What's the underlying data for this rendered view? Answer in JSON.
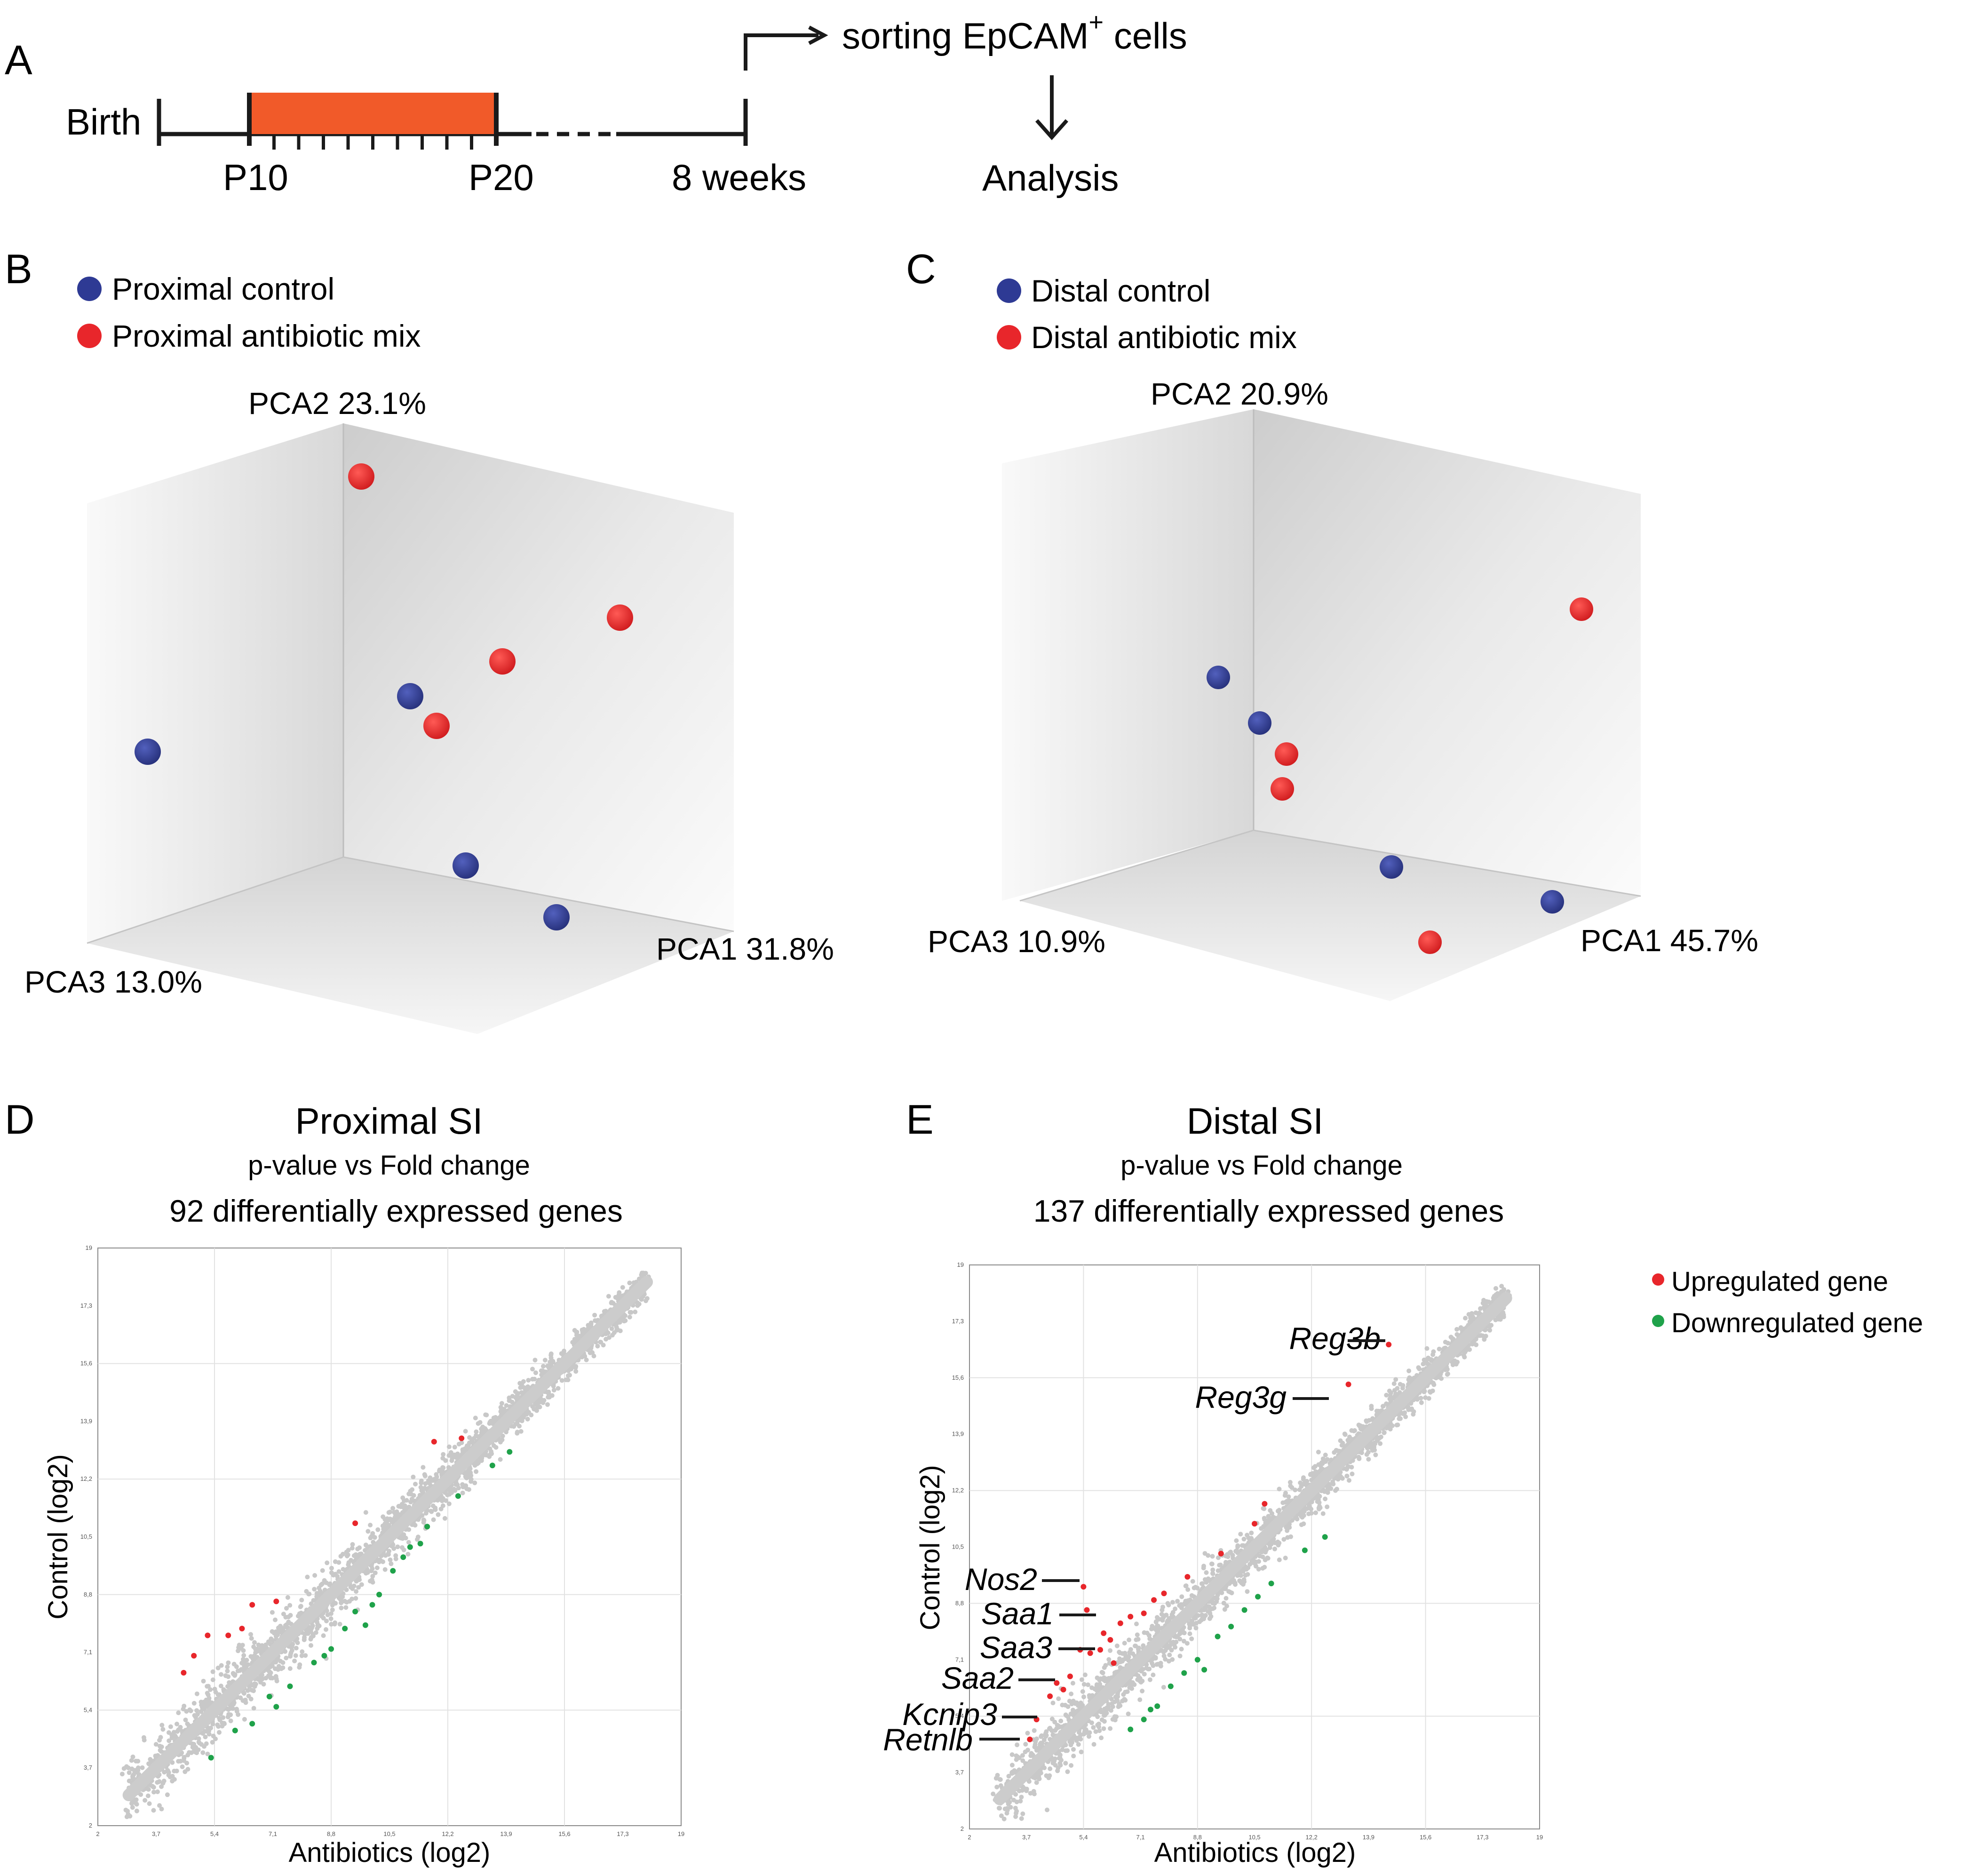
{
  "panels": {
    "A": {
      "letter": "A",
      "birth": "Birth",
      "p10": "P10",
      "p20": "P20",
      "weeks": "8 weeks",
      "sorting_pre": "sorting EpCAM",
      "sorting_sup": "+",
      "sorting_post": " cells",
      "analysis": "Analysis",
      "treatment_color": "#f15a29"
    },
    "B": {
      "letter": "B",
      "legend": [
        {
          "label": "Proximal control",
          "color": "#2e3a94"
        },
        {
          "label": "Proximal antibiotic mix",
          "color": "#e8262b"
        }
      ],
      "axes": {
        "pca1": "PCA1 31.8%",
        "pca2": "PCA2 23.1%",
        "pca3": "PCA3 13.0%"
      }
    },
    "C": {
      "letter": "C",
      "legend": [
        {
          "label": "Distal control",
          "color": "#2e3a94"
        },
        {
          "label": "Distal antibiotic mix",
          "color": "#e8262b"
        }
      ],
      "axes": {
        "pca1": "PCA1 45.7%",
        "pca2": "PCA2 20.9%",
        "pca3": "PCA3 10.9%"
      }
    },
    "D": {
      "letter": "D",
      "title": "Proximal SI",
      "subtitle": "p-value vs Fold change",
      "count": "92 differentially expressed genes",
      "xlabel": "Antibiotics (log2)",
      "ylabel": "Control (log2)",
      "ticks": [
        "2",
        "3,7",
        "5,4",
        "7,1",
        "8,8",
        "10,5",
        "12,2",
        "13,9",
        "15,6",
        "17,3",
        "19"
      ]
    },
    "E": {
      "letter": "E",
      "title": "Distal SI",
      "subtitle": "p-value vs Fold change",
      "count": "137 differentially expressed genes",
      "xlabel": "Antibiotics (log2)",
      "ylabel": "Control (log2)",
      "ticks": [
        "2",
        "3,7",
        "5,4",
        "7,1",
        "8,8",
        "10,5",
        "12,2",
        "13,9",
        "15,6",
        "17,3",
        "19"
      ],
      "genes": [
        "Reg3b",
        "Reg3g",
        "Nos2",
        "Saa1",
        "Saa3",
        "Saa2",
        "Kcnip3",
        "Retnlb"
      ],
      "legend": [
        {
          "label": "Upregulated gene",
          "color": "#e8262b"
        },
        {
          "label": "Downregulated gene",
          "color": "#1fa24a"
        }
      ]
    }
  },
  "chart_data": [
    {
      "type": "scatter",
      "title": "Proximal SI",
      "xlabel": "Antibiotics (log2)",
      "ylabel": "Control (log2)",
      "xlim": [
        2,
        19
      ],
      "ylim": [
        2,
        19
      ],
      "series": [
        {
          "name": "Upregulated gene",
          "points": [
            [
              4.5,
              6.5
            ],
            [
              5.2,
              7.6
            ],
            [
              6.5,
              8.5
            ],
            [
              7.2,
              8.6
            ],
            [
              9.5,
              10.9
            ],
            [
              11.8,
              13.3
            ],
            [
              4.8,
              7.0
            ],
            [
              6.2,
              7.8
            ],
            [
              5.8,
              7.6
            ],
            [
              12.6,
              13.4
            ]
          ]
        },
        {
          "name": "Downregulated gene",
          "points": [
            [
              5.3,
              4.0
            ],
            [
              6.0,
              4.8
            ],
            [
              6.5,
              5.0
            ],
            [
              7.2,
              5.5
            ],
            [
              7.6,
              6.1
            ],
            [
              8.3,
              6.8
            ],
            [
              8.8,
              7.2
            ],
            [
              9.2,
              7.8
            ],
            [
              9.5,
              8.3
            ],
            [
              10.0,
              8.5
            ],
            [
              10.6,
              9.5
            ],
            [
              11.1,
              10.2
            ],
            [
              11.6,
              10.8
            ],
            [
              12.5,
              11.7
            ],
            [
              13.5,
              12.6
            ],
            [
              14.0,
              13.0
            ],
            [
              9.8,
              7.9
            ],
            [
              10.2,
              8.8
            ],
            [
              8.6,
              7.0
            ],
            [
              7.0,
              5.8
            ],
            [
              10.9,
              9.9
            ],
            [
              11.4,
              10.3
            ]
          ]
        }
      ]
    },
    {
      "type": "scatter",
      "title": "Distal SI",
      "xlabel": "Antibiotics (log2)",
      "ylabel": "Control (log2)",
      "xlim": [
        2,
        19
      ],
      "ylim": [
        2,
        19
      ],
      "series": [
        {
          "name": "Upregulated gene",
          "points": [
            [
              14.5,
              16.6
            ],
            [
              13.3,
              15.4
            ],
            [
              5.4,
              9.3
            ],
            [
              5.5,
              8.6
            ],
            [
              5.3,
              7.4
            ],
            [
              4.8,
              6.2
            ],
            [
              4.0,
              5.3
            ],
            [
              3.8,
              4.7
            ],
            [
              5.9,
              7.4
            ],
            [
              6.2,
              7.7
            ],
            [
              6.5,
              8.2
            ],
            [
              6.8,
              8.4
            ],
            [
              7.2,
              8.5
            ],
            [
              7.8,
              9.1
            ],
            [
              8.5,
              9.6
            ],
            [
              9.5,
              10.3
            ],
            [
              10.5,
              11.2
            ],
            [
              5.0,
              6.6
            ],
            [
              5.6,
              7.3
            ],
            [
              6.0,
              7.9
            ],
            [
              4.4,
              6.0
            ],
            [
              4.6,
              6.4
            ],
            [
              6.3,
              7.0
            ],
            [
              10.8,
              11.8
            ],
            [
              7.5,
              8.9
            ]
          ]
        },
        {
          "name": "Downregulated gene",
          "points": [
            [
              6.8,
              5.0
            ],
            [
              7.2,
              5.3
            ],
            [
              7.6,
              5.7
            ],
            [
              8.0,
              6.3
            ],
            [
              8.4,
              6.7
            ],
            [
              8.8,
              7.1
            ],
            [
              9.4,
              7.8
            ],
            [
              9.8,
              8.1
            ],
            [
              10.2,
              8.6
            ],
            [
              10.6,
              9.0
            ],
            [
              11.0,
              9.4
            ],
            [
              12.0,
              10.4
            ],
            [
              9.0,
              6.8
            ],
            [
              7.4,
              5.6
            ],
            [
              12.6,
              10.8
            ]
          ]
        }
      ]
    }
  ]
}
